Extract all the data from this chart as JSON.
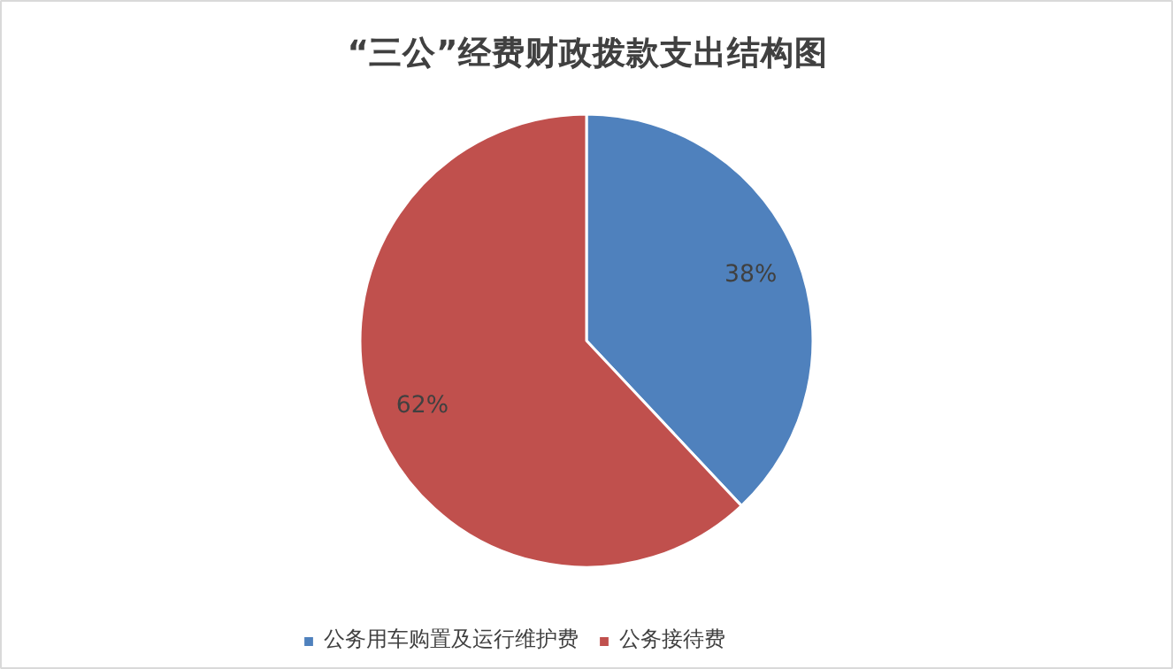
{
  "chart_data": {
    "type": "pie",
    "title": "“三公”经费财政拨款支出结构图",
    "categories": [
      "公务用车购置及运行维护费",
      "公务接待费"
    ],
    "values": [
      38,
      62
    ],
    "colors": [
      "#4f81bd",
      "#c0504d"
    ],
    "value_labels": [
      "38%",
      "62%"
    ],
    "legend": "bottom"
  }
}
